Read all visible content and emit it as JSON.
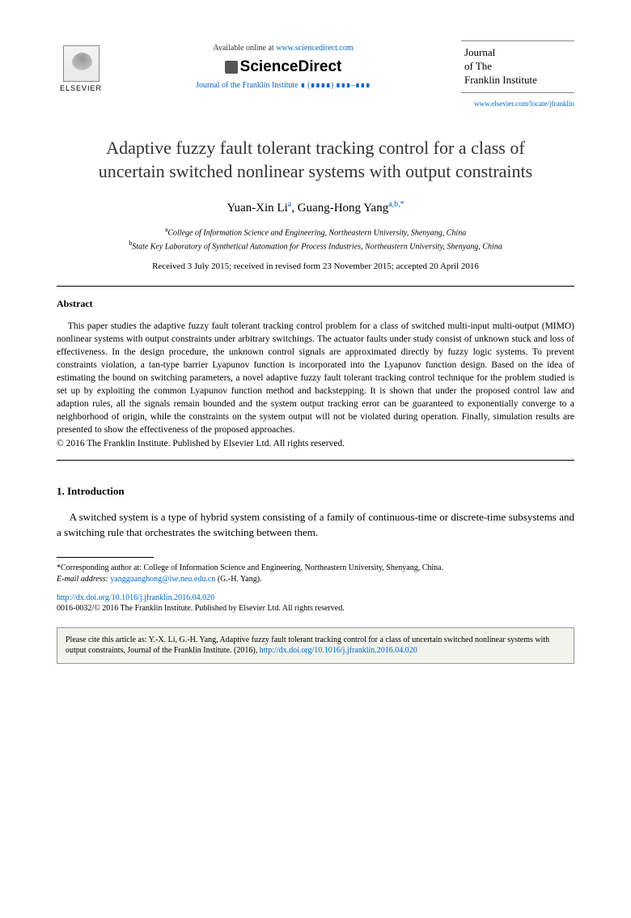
{
  "header": {
    "available_prefix": "Available online at ",
    "sd_url": "www.sciencedirect.com",
    "sciencedirect": "ScienceDirect",
    "journal_ref": "Journal of the Franklin Institute ∎ (∎∎∎∎) ∎∎∎–∎∎∎",
    "journal_box_line1": "Journal",
    "journal_box_line2": "of The",
    "journal_box_line3": "Franklin Institute",
    "journal_url": "www.elsevier.com/locate/jfranklin",
    "elsevier_label": "ELSEVIER"
  },
  "title": "Adaptive fuzzy fault tolerant tracking control for a class of uncertain switched nonlinear systems with output constraints",
  "authors": {
    "a1_name": "Yuan-Xin Li",
    "a1_sup": "a",
    "a2_name": "Guang-Hong Yang",
    "a2_sup": "a,b,*"
  },
  "affiliations": {
    "a": "College of Information Science and Engineering, Northeastern University, Shenyang, China",
    "b": "State Key Laboratory of Synthetical Automation for Process Industries, Northeastern University, Shenyang, China"
  },
  "dates": "Received 3 July 2015; received in revised form 23 November 2015; accepted 20 April 2016",
  "abstract": {
    "heading": "Abstract",
    "text": "This paper studies the adaptive fuzzy fault tolerant tracking control problem for a class of switched multi-input multi-output (MIMO) nonlinear systems with output constraints under arbitrary switchings. The actuator faults under study consist of unknown stuck and loss of effectiveness. In the design procedure, the unknown control signals are approximated directly by fuzzy logic systems. To prevent constraints violation, a tan-type barrier Lyapunov function is incorporated into the Lyapunov function design. Based on the idea of estimating the bound on switching parameters, a novel adaptive fuzzy fault tolerant tracking control technique for the problem studied is set up by exploiting the common Lyapunov function method and backstepping. It is shown that under the proposed control law and adaption rules, all the signals remain bounded and the system output tracking error can be guaranteed to exponentially converge to a neighborhood of origin, while the constraints on the system output will not be violated during operation. Finally, simulation results are presented to show the effectiveness of the proposed approaches.",
    "copyright": "© 2016 The Franklin Institute. Published by Elsevier Ltd. All rights reserved."
  },
  "intro": {
    "heading": "1. Introduction",
    "para1": "A switched system is a type of hybrid system consisting of a family of continuous-time or discrete-time subsystems and a switching rule that orchestrates the switching between them."
  },
  "footnote": {
    "corr": "*Corresponding author at: College of Information Science and Engineering, Northeastern University, Shenyang, China.",
    "email_label": "E-mail address: ",
    "email": "yangguanghong@ise.neu.edu.cn",
    "email_suffix": " (G.-H. Yang)."
  },
  "doi": "http://dx.doi.org/10.1016/j.jfranklin.2016.04.020",
  "issn": "0016-0032/© 2016 The Franklin Institute. Published by Elsevier Ltd. All rights reserved.",
  "citebox": {
    "text": "Please cite this article as: Y.-X. Li, G.-H. Yang, Adaptive fuzzy fault tolerant tracking control for a class of uncertain switched nonlinear systems with output constraints, Journal of the Franklin Institute. (2016), ",
    "doi": "http://dx.doi.org/10.1016/j.jfranklin.2016.04.020"
  },
  "colors": {
    "link": "#0066cc",
    "text": "#000000",
    "citebox_bg": "#f3f3ee",
    "rule": "#000000"
  },
  "typography": {
    "title_fontsize": 22,
    "body_fontsize": 13,
    "abstract_fontsize": 11.5,
    "footnote_fontsize": 10,
    "font_family": "Georgia, Times New Roman, serif"
  }
}
